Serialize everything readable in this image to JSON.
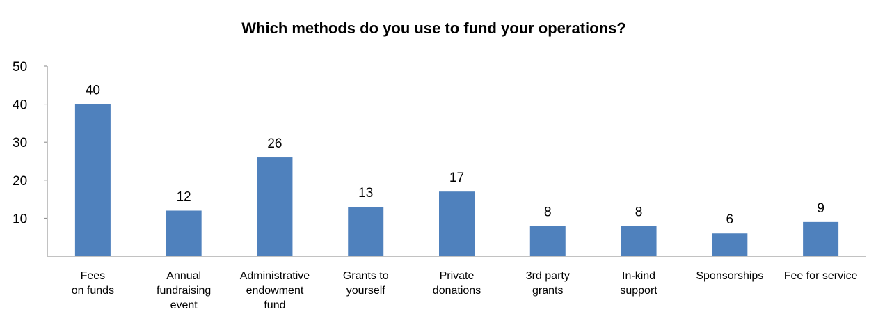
{
  "chart_data": {
    "type": "bar",
    "title": "Which methods do you use to fund your operations?",
    "categories": [
      [
        "Fees",
        "on funds"
      ],
      [
        "Annual",
        "fundraising",
        "event"
      ],
      [
        "Administrative",
        "endowment",
        "fund"
      ],
      [
        "Grants to",
        "yourself"
      ],
      [
        "Private",
        "donations"
      ],
      [
        "3rd party",
        "grants"
      ],
      [
        "In-kind",
        "support"
      ],
      [
        "Sponsorships"
      ],
      [
        "Fee for service"
      ]
    ],
    "values": [
      40,
      12,
      26,
      13,
      17,
      8,
      8,
      6,
      9
    ],
    "ylim": [
      0,
      50
    ],
    "yticks": [
      10,
      20,
      30,
      40,
      50
    ],
    "xlabel": "",
    "ylabel": "",
    "bar_color": "#4f81bd",
    "grid": false,
    "legend": "none"
  }
}
